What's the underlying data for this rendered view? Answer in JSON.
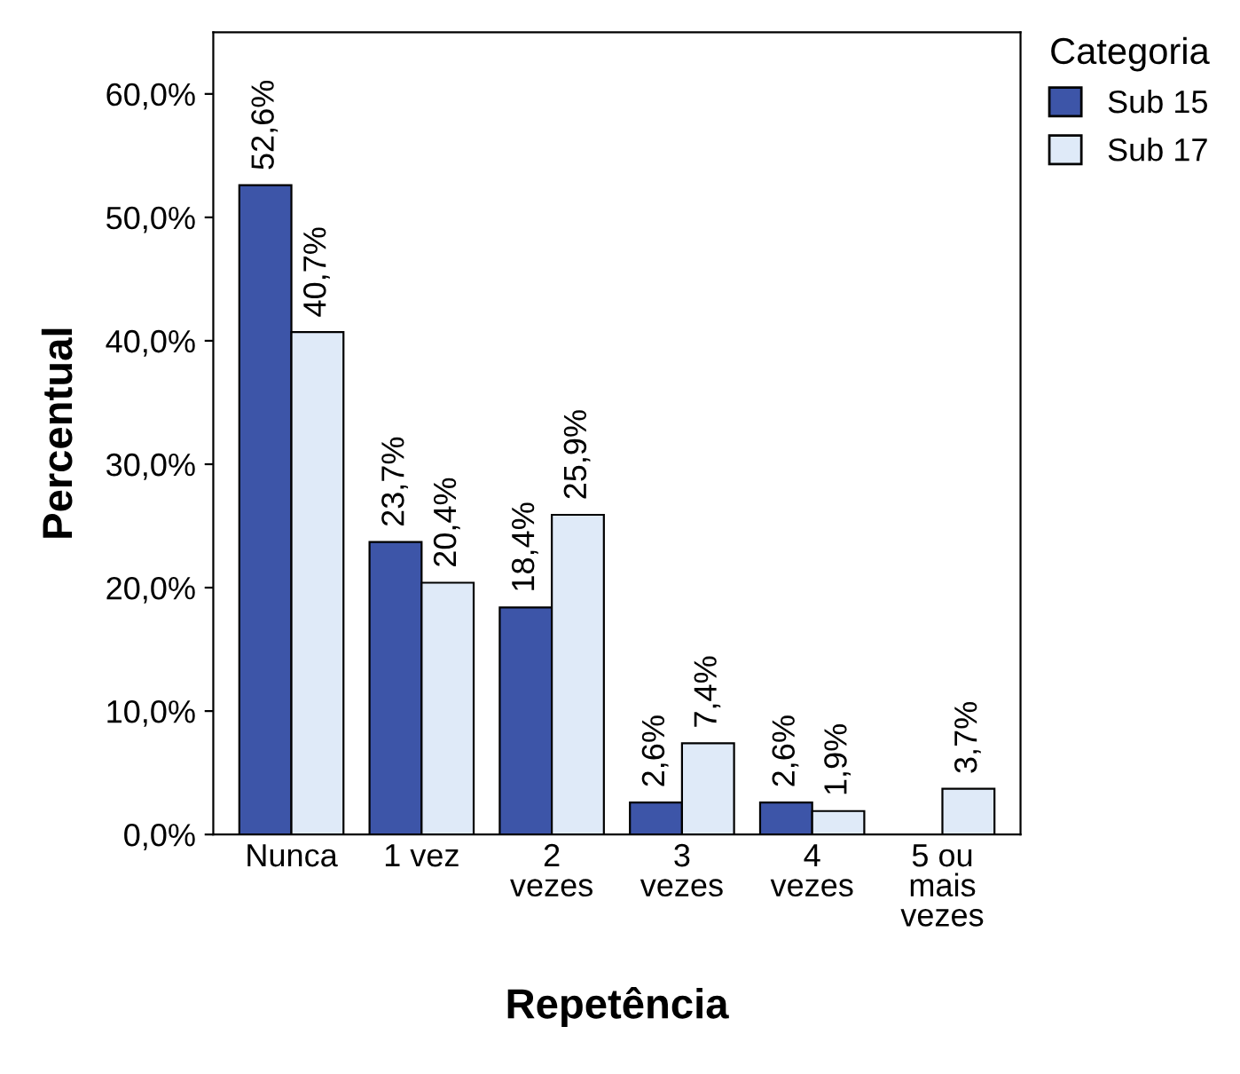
{
  "chart_data": {
    "type": "bar",
    "xlabel": "Repetência",
    "ylabel": "Percentual",
    "legend_title": "Categoria",
    "legend": "right",
    "categories": [
      "Nunca",
      "1 vez",
      "2\nvezes",
      "3\nvezes",
      "4\nvezes",
      "5 ou\nmais\nvezes"
    ],
    "series": [
      {
        "name": "Sub 15",
        "color": "#3d55a8",
        "values": [
          52.6,
          23.7,
          18.4,
          2.6,
          2.6,
          null
        ],
        "value_labels": [
          "52,6%",
          "23,7%",
          "18,4%",
          "2,6%",
          "2,6%",
          null
        ]
      },
      {
        "name": "Sub 17",
        "color": "#dfeaf8",
        "values": [
          40.7,
          20.4,
          25.9,
          7.4,
          1.9,
          3.7
        ],
        "value_labels": [
          "40,7%",
          "20,4%",
          "25,9%",
          "7,4%",
          "1,9%",
          "3,7%"
        ]
      }
    ],
    "ylim": [
      0,
      65
    ],
    "yticks": [
      {
        "value": 0,
        "label": "0,0%"
      },
      {
        "value": 10,
        "label": "10,0%"
      },
      {
        "value": 20,
        "label": "20,0%"
      },
      {
        "value": 30,
        "label": "30,0%"
      },
      {
        "value": 40,
        "label": "40,0%"
      },
      {
        "value": 50,
        "label": "50,0%"
      },
      {
        "value": 60,
        "label": "60,0%"
      }
    ],
    "grid": false
  }
}
